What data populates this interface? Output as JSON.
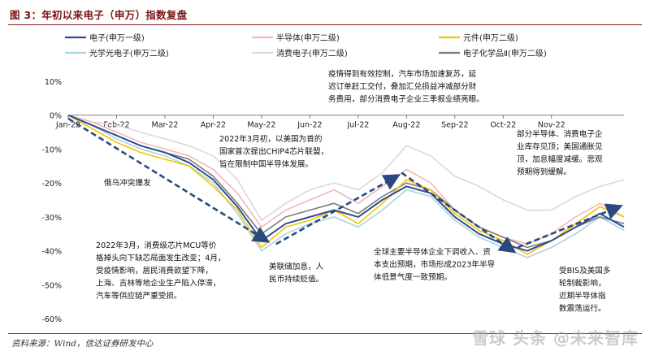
{
  "header": {
    "title": "图 3：年初以来电子（申万）指数复盘"
  },
  "footer": {
    "source": "资料来源：Wind，信达证券研发中心",
    "watermark": "雪球 头条 @未来智库"
  },
  "chart_data": {
    "type": "line",
    "ylim": [
      -60,
      10
    ],
    "yticks": [
      "10%",
      "0%",
      "-10%",
      "-20%",
      "-30%",
      "-40%",
      "-50%",
      "-60%"
    ],
    "x_ticks": [
      "Jan-22",
      "Feb-22",
      "Mar-22",
      "Apr-22",
      "May-22",
      "Jun-22",
      "Jul-22",
      "Aug-22",
      "Sep-22",
      "Oct-22",
      "Nov-22"
    ],
    "x": [
      0,
      0.5,
      1,
      1.5,
      2,
      2.5,
      3,
      3.5,
      4,
      4.5,
      5,
      5.5,
      6,
      6.5,
      7,
      7.5,
      8,
      8.5,
      9,
      9.5,
      10,
      10.5,
      11,
      11.5
    ],
    "series": [
      {
        "name": "电子(申万一级)",
        "color": "#2e4d8f",
        "values": [
          0,
          -3,
          -6,
          -9,
          -11,
          -14,
          -19,
          -27,
          -37,
          -32,
          -30,
          -28,
          -30,
          -25,
          -21,
          -23,
          -30,
          -35,
          -38,
          -40,
          -37,
          -33,
          -29,
          -33
        ]
      },
      {
        "name": "半导体(申万二级)",
        "color": "#f2b8b8",
        "values": [
          0,
          -2,
          -5,
          -8,
          -10,
          -12,
          -16,
          -23,
          -33,
          -28,
          -25,
          -22,
          -26,
          -21,
          -16,
          -20,
          -28,
          -33,
          -36,
          -38,
          -35,
          -30,
          -26,
          -30
        ]
      },
      {
        "name": "元件(申万二级)",
        "color": "#f5c400",
        "values": [
          0,
          -4,
          -8,
          -11,
          -13,
          -15,
          -21,
          -28,
          -39,
          -33,
          -31,
          -28,
          -32,
          -26,
          -19,
          -22,
          -29,
          -34,
          -37,
          -41,
          -37,
          -32,
          -27,
          -30
        ]
      },
      {
        "name": "光学光电子(申万二级)",
        "color": "#a9d3df",
        "values": [
          0,
          -3,
          -7,
          -10,
          -12,
          -15,
          -20,
          -29,
          -40,
          -35,
          -32,
          -30,
          -33,
          -28,
          -22,
          -24,
          -31,
          -36,
          -39,
          -42,
          -39,
          -35,
          -30,
          -34
        ]
      },
      {
        "name": "消费电子(申万二级)",
        "color": "#d9d9d9",
        "values": [
          0,
          -2,
          -3,
          -5,
          -7,
          -9,
          -12,
          -19,
          -31,
          -26,
          -22,
          -20,
          -22,
          -17,
          -9,
          -12,
          -18,
          -21,
          -25,
          -28,
          -28,
          -24,
          -21,
          -19
        ]
      },
      {
        "name": "电子化学品Ⅱ(申万二级)",
        "color": "#7b7b7b",
        "values": [
          0,
          -3,
          -6,
          -9,
          -11,
          -13,
          -18,
          -26,
          -35,
          -30,
          -28,
          -26,
          -29,
          -24,
          -20,
          -22,
          -28,
          -33,
          -36,
          -39,
          -37,
          -33,
          -30,
          -32
        ]
      }
    ],
    "trend_arrows": [
      {
        "from": [
          0,
          -1
        ],
        "to": [
          4.1,
          -37
        ]
      },
      {
        "from": [
          4.3,
          -38
        ],
        "to": [
          6.8,
          -18
        ]
      },
      {
        "from": [
          6.9,
          -17
        ],
        "to": [
          9.2,
          -40
        ]
      },
      {
        "from": [
          9.3,
          -39
        ],
        "to": [
          11.4,
          -27
        ]
      }
    ],
    "annotations": [
      {
        "id": "ukraine",
        "lines": [
          "俄乌冲突爆发"
        ]
      },
      {
        "id": "chip4",
        "lines": [
          "2022年3月初，以美国为首的",
          "国家首次提出CHIP4芯片联盟，",
          "旨在限制中国半导体发展。"
        ]
      },
      {
        "id": "epidemic",
        "lines": [
          "疫情得到有效控制，汽车市场加速复苏，延",
          "迟订单赶工交付，叠加汇兑损益冲减部分财",
          "务费用，部分消费电子企业三季报业绩亮眼。"
        ]
      },
      {
        "id": "mcu",
        "lines": [
          "2022年3月，消费级芯片MCU等价",
          "格掉头向下缺芯局面发生改变；4月，",
          "受疫情影响，居民消费欲望下降，",
          "上海、吉林等地企业生产陷入停滞，",
          "汽车等供应链严重受损。"
        ]
      },
      {
        "id": "fed",
        "lines": [
          "美联储加息，人",
          "民币持续贬值。"
        ]
      },
      {
        "id": "global",
        "lines": [
          "全球主要半导体企业下调收入、资",
          "本支出预期，市场形成2023年半导",
          "体低景气度一致预期。"
        ]
      },
      {
        "id": "inventory",
        "lines": [
          "部分半导体、消费电子企",
          "业库存见顶；美国通胀见",
          "顶，加息幅度减缓。悲观",
          "预期得到缓解。"
        ]
      },
      {
        "id": "bis",
        "lines": [
          "受BIS及美国多",
          "轮制裁影响，",
          "近期半导体指",
          "数震荡运行。"
        ]
      }
    ]
  }
}
